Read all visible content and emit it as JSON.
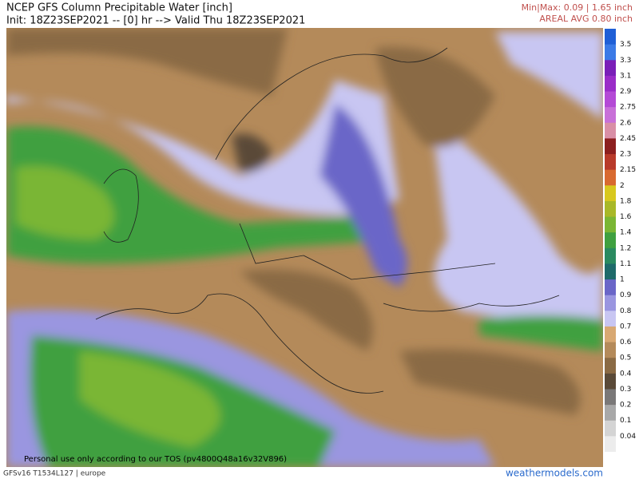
{
  "header": {
    "title": "NCEP GFS Column Precipitable Water [inch]",
    "init": "Init: 18Z23SEP2021 -- [0] hr --> Valid Thu 18Z23SEP2021",
    "minmax": "Min|Max: 0.09 | 1.65 inch",
    "areal_avg": "AREAL AVG 0.80 inch"
  },
  "colorbar": {
    "stops": [
      {
        "label": "3.5",
        "color": "#1f5fd6"
      },
      {
        "label": "3.3",
        "color": "#3b7ae6"
      },
      {
        "label": "3.1",
        "color": "#7a1fb8"
      },
      {
        "label": "2.9",
        "color": "#9a2cc8"
      },
      {
        "label": "2.75",
        "color": "#b44ad6"
      },
      {
        "label": "2.6",
        "color": "#c870d8"
      },
      {
        "label": "2.45",
        "color": "#d98fa6"
      },
      {
        "label": "2.3",
        "color": "#8c1f1f"
      },
      {
        "label": "2.15",
        "color": "#b83a2a"
      },
      {
        "label": "2",
        "color": "#d86a30"
      },
      {
        "label": "1.8",
        "color": "#d8c81e"
      },
      {
        "label": "1.6",
        "color": "#a8b828"
      },
      {
        "label": "1.4",
        "color": "#7ab634"
      },
      {
        "label": "1.2",
        "color": "#3fa040"
      },
      {
        "label": "1.1",
        "color": "#2a8a60"
      },
      {
        "label": "1",
        "color": "#1e6a6a"
      },
      {
        "label": "0.9",
        "color": "#6a66c8"
      },
      {
        "label": "0.8",
        "color": "#9a96e0"
      },
      {
        "label": "0.7",
        "color": "#c8c6f2"
      },
      {
        "label": "0.6",
        "color": "#d8a872"
      },
      {
        "label": "0.5",
        "color": "#b48a5a"
      },
      {
        "label": "0.4",
        "color": "#8a6a44"
      },
      {
        "label": "0.3",
        "color": "#5a4a38"
      },
      {
        "label": "0.2",
        "color": "#7a7878"
      },
      {
        "label": "0.1",
        "color": "#a8a8a8"
      },
      {
        "label": "0.04",
        "color": "#d4d4d4"
      }
    ]
  },
  "watermark": "Personal use only according to our TOS (pv4800Q48a16v32V896)",
  "footer": {
    "model": "GFSv16 T1534L127 | europe",
    "site": "weathermodels.com"
  }
}
